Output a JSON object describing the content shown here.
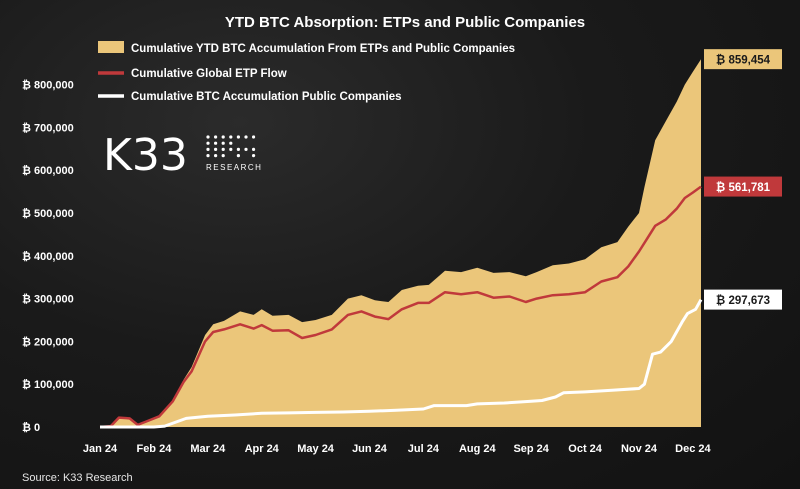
{
  "chart_data": {
    "type": "area",
    "title": "YTD BTC Absorption: ETPs and Public Companies",
    "source": "Source: K33 Research",
    "logo": {
      "text": "K33",
      "subtitle": "RESEARCH"
    },
    "colors": {
      "total": "#ebc67a",
      "etp": "#c0393b",
      "public": "#ffffff"
    },
    "legend_position": "top-left",
    "grid": false,
    "x_ticks": [
      "Jan 24",
      "Feb 24",
      "Mar 24",
      "Apr 24",
      "May 24",
      "Jun 24",
      "Jul 24",
      "Aug 24",
      "Sep 24",
      "Oct 24",
      "Nov 24",
      "Dec 24"
    ],
    "y_ticks": [
      "₿ 0",
      "₿ 100,000",
      "₿ 200,000",
      "₿ 300,000",
      "₿ 400,000",
      "₿ 500,000",
      "₿ 600,000",
      "₿ 700,000",
      "₿ 800,000"
    ],
    "ylim": [
      0,
      900000
    ],
    "x_unit": "months since Jan 1 2024",
    "series": [
      {
        "name": "Cumulative YTD BTC Accumulation From ETPs and Public Companies",
        "style": "area",
        "end_label": "₿ 859,454",
        "points": [
          [
            0,
            0
          ],
          [
            0.2,
            2000
          ],
          [
            0.35,
            22000
          ],
          [
            0.55,
            20000
          ],
          [
            0.7,
            5000
          ],
          [
            0.9,
            15000
          ],
          [
            1.1,
            25000
          ],
          [
            1.35,
            60000
          ],
          [
            1.55,
            110000
          ],
          [
            1.7,
            140000
          ],
          [
            1.95,
            215000
          ],
          [
            2.1,
            240000
          ],
          [
            2.3,
            248000
          ],
          [
            2.6,
            270000
          ],
          [
            2.85,
            262000
          ],
          [
            3.0,
            275000
          ],
          [
            3.2,
            260000
          ],
          [
            3.5,
            262000
          ],
          [
            3.75,
            245000
          ],
          [
            4.0,
            250000
          ],
          [
            4.3,
            262000
          ],
          [
            4.6,
            300000
          ],
          [
            4.85,
            308000
          ],
          [
            5.1,
            296000
          ],
          [
            5.35,
            292000
          ],
          [
            5.6,
            320000
          ],
          [
            5.9,
            330000
          ],
          [
            6.1,
            332000
          ],
          [
            6.4,
            365000
          ],
          [
            6.7,
            362000
          ],
          [
            7.0,
            372000
          ],
          [
            7.3,
            360000
          ],
          [
            7.6,
            362000
          ],
          [
            7.9,
            352000
          ],
          [
            8.1,
            362000
          ],
          [
            8.4,
            378000
          ],
          [
            8.7,
            382000
          ],
          [
            9.0,
            392000
          ],
          [
            9.3,
            420000
          ],
          [
            9.6,
            432000
          ],
          [
            9.8,
            468000
          ],
          [
            10.0,
            500000
          ],
          [
            10.1,
            560000
          ],
          [
            10.3,
            670000
          ],
          [
            10.5,
            715000
          ],
          [
            10.7,
            760000
          ],
          [
            10.85,
            800000
          ],
          [
            11.0,
            830000
          ],
          [
            11.15,
            859454
          ]
        ]
      },
      {
        "name": "Cumulative Global ETP Flow",
        "style": "line",
        "end_label": "₿ 561,781",
        "points": [
          [
            0,
            0
          ],
          [
            0.2,
            2000
          ],
          [
            0.35,
            22000
          ],
          [
            0.55,
            20000
          ],
          [
            0.7,
            5000
          ],
          [
            0.9,
            15000
          ],
          [
            1.1,
            25000
          ],
          [
            1.35,
            60000
          ],
          [
            1.55,
            105000
          ],
          [
            1.7,
            130000
          ],
          [
            1.95,
            200000
          ],
          [
            2.1,
            222000
          ],
          [
            2.3,
            228000
          ],
          [
            2.6,
            240000
          ],
          [
            2.85,
            230000
          ],
          [
            3.0,
            238000
          ],
          [
            3.2,
            225000
          ],
          [
            3.5,
            226000
          ],
          [
            3.75,
            208000
          ],
          [
            4.0,
            215000
          ],
          [
            4.3,
            228000
          ],
          [
            4.6,
            262000
          ],
          [
            4.85,
            270000
          ],
          [
            5.1,
            258000
          ],
          [
            5.35,
            252000
          ],
          [
            5.6,
            275000
          ],
          [
            5.9,
            290000
          ],
          [
            6.1,
            290000
          ],
          [
            6.4,
            315000
          ],
          [
            6.7,
            310000
          ],
          [
            7.0,
            315000
          ],
          [
            7.3,
            302000
          ],
          [
            7.6,
            305000
          ],
          [
            7.9,
            292000
          ],
          [
            8.1,
            300000
          ],
          [
            8.4,
            308000
          ],
          [
            8.7,
            310000
          ],
          [
            9.0,
            315000
          ],
          [
            9.3,
            340000
          ],
          [
            9.6,
            350000
          ],
          [
            9.8,
            375000
          ],
          [
            10.0,
            410000
          ],
          [
            10.15,
            440000
          ],
          [
            10.3,
            470000
          ],
          [
            10.5,
            485000
          ],
          [
            10.7,
            510000
          ],
          [
            10.85,
            535000
          ],
          [
            11.0,
            548000
          ],
          [
            11.15,
            561781
          ]
        ]
      },
      {
        "name": "Cumulative BTC Accumulation Public Companies",
        "style": "line",
        "end_label": "₿ 297,673",
        "points": [
          [
            0,
            0
          ],
          [
            1.0,
            0
          ],
          [
            1.2,
            2000
          ],
          [
            1.6,
            20000
          ],
          [
            2.0,
            25000
          ],
          [
            2.5,
            28000
          ],
          [
            3.0,
            32000
          ],
          [
            3.5,
            33000
          ],
          [
            4.0,
            34000
          ],
          [
            4.5,
            35000
          ],
          [
            5.0,
            37000
          ],
          [
            5.5,
            39000
          ],
          [
            6.0,
            42000
          ],
          [
            6.2,
            50000
          ],
          [
            6.8,
            50000
          ],
          [
            7.0,
            54000
          ],
          [
            7.5,
            56000
          ],
          [
            8.0,
            60000
          ],
          [
            8.2,
            62000
          ],
          [
            8.45,
            70000
          ],
          [
            8.6,
            80000
          ],
          [
            9.0,
            82000
          ],
          [
            9.5,
            86000
          ],
          [
            10.0,
            90000
          ],
          [
            10.1,
            100000
          ],
          [
            10.25,
            170000
          ],
          [
            10.4,
            175000
          ],
          [
            10.6,
            200000
          ],
          [
            10.8,
            245000
          ],
          [
            10.9,
            265000
          ],
          [
            11.05,
            275000
          ],
          [
            11.15,
            297673
          ]
        ]
      }
    ]
  }
}
